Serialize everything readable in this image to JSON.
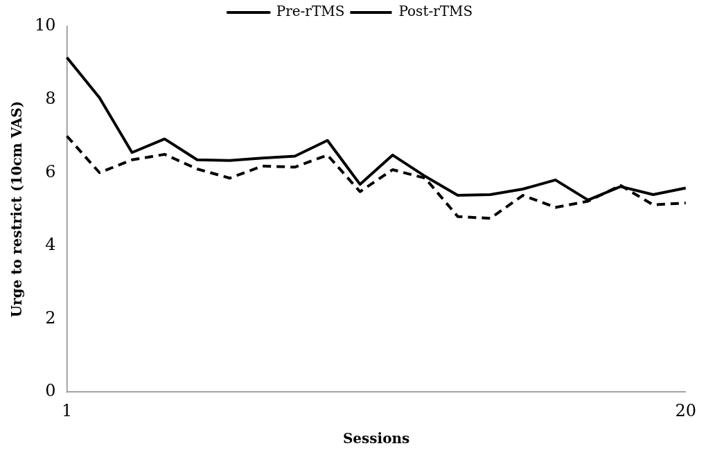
{
  "chart_data": {
    "type": "line",
    "xlabel": "Sessions",
    "ylabel": "Urge to restrict (10cm VAS)",
    "categories": [
      "1",
      null,
      null,
      null,
      null,
      null,
      null,
      null,
      null,
      null,
      null,
      null,
      null,
      null,
      null,
      null,
      null,
      null,
      null,
      "20"
    ],
    "series": [
      {
        "name": "Pre-rTMS",
        "color": "#000000",
        "line_style": "solid",
        "values": [
          9.15,
          8.05,
          6.55,
          6.92,
          6.35,
          6.33,
          6.4,
          6.45,
          6.88,
          5.68,
          6.48,
          5.9,
          5.38,
          5.4,
          5.55,
          5.8,
          5.25,
          5.62,
          5.4,
          5.58
        ]
      },
      {
        "name": "Post-rTMS",
        "color": "#000000",
        "line_style": "dashed",
        "values": [
          7.0,
          6.0,
          6.35,
          6.5,
          6.1,
          5.85,
          6.18,
          6.15,
          6.48,
          5.48,
          6.08,
          5.85,
          4.8,
          4.75,
          5.38,
          5.05,
          5.22,
          5.65,
          5.12,
          5.17
        ]
      }
    ],
    "ylim": [
      0,
      10
    ],
    "yticks": [
      0,
      2,
      4,
      6,
      8,
      10
    ],
    "grid": false,
    "legend": "top",
    "marker": "none"
  }
}
